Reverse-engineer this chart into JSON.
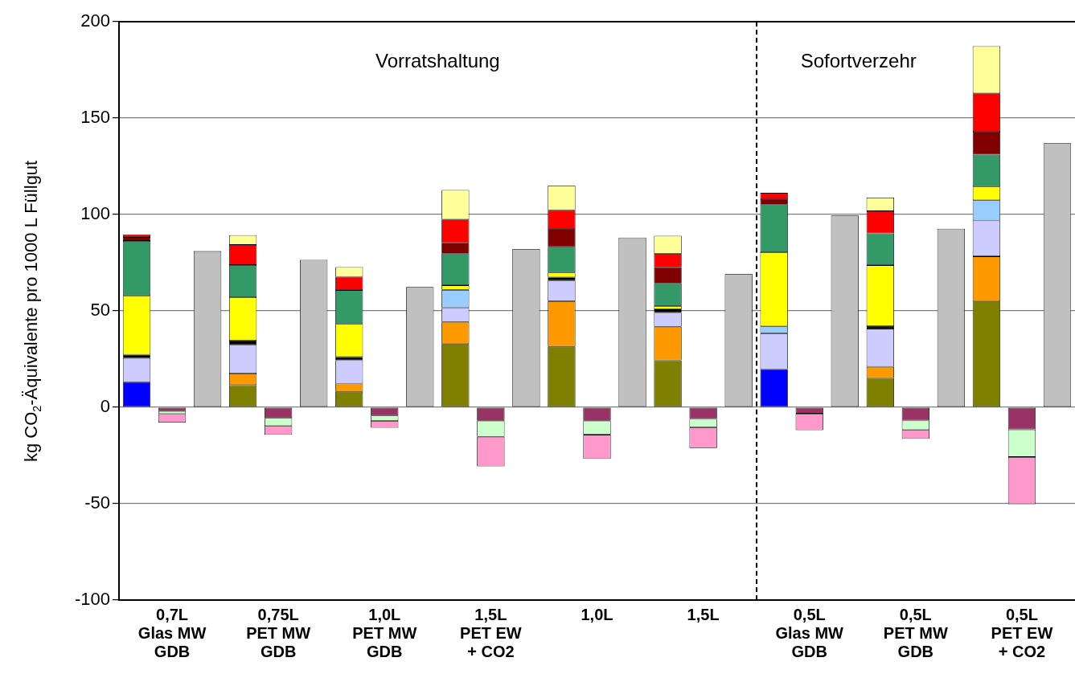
{
  "chart_data": {
    "type": "bar",
    "stacked": true,
    "grid": "y",
    "legend": false,
    "ylabel": "kg CO$_{2}$-Äquivalente pro 1000 L Füllgut",
    "categories": [
      null,
      "0,7L\nGlas MW\nGDB",
      null,
      null,
      "0,75L\nPET MW\nGDB",
      null,
      null,
      "1,0L\nPET MW\nGDB",
      null,
      null,
      "1,5L\nPET EW\n+ CO2",
      null,
      null,
      "1,0L",
      null,
      null,
      "1,5L",
      null,
      null,
      "0,5L\nGlas MW\nGDB",
      null,
      null,
      "0,5L\nPET MW\nGDB",
      null,
      null,
      "0,5L\nPET EW\n+ CO2",
      null
    ],
    "ylim": [
      -100,
      200
    ],
    "yticks": [
      -100,
      -50,
      0,
      50,
      100,
      150,
      200
    ],
    "annotations": [
      "Vorratshaltung",
      "Sofortverzehr"
    ],
    "series": [
      {
        "color": "#0000ff",
        "values": [
          13,
          null,
          null,
          null,
          null,
          null,
          null,
          null,
          null,
          null,
          null,
          null,
          null,
          null,
          null,
          null,
          null,
          null,
          19.8,
          null,
          null,
          null,
          null,
          null,
          null,
          null,
          null
        ]
      },
      {
        "color": "#808000",
        "values": [
          null,
          null,
          null,
          11.5,
          null,
          null,
          8,
          null,
          null,
          32.8,
          null,
          null,
          31.4,
          null,
          null,
          24.4,
          null,
          null,
          null,
          null,
          null,
          15.2,
          null,
          null,
          54.9,
          null,
          null
        ]
      },
      {
        "color": "#ff9900",
        "values": [
          null,
          null,
          null,
          6,
          null,
          null,
          4.3,
          null,
          null,
          11.5,
          null,
          null,
          23.6,
          null,
          null,
          17.4,
          null,
          null,
          null,
          null,
          null,
          5.8,
          null,
          null,
          23.4,
          null,
          null
        ]
      },
      {
        "color": "#ccccff",
        "values": [
          12.5,
          null,
          null,
          14.9,
          null,
          null,
          12.1,
          null,
          null,
          7.2,
          null,
          null,
          10.7,
          null,
          null,
          7.2,
          null,
          null,
          18.6,
          null,
          null,
          19.8,
          null,
          null,
          18.6,
          null,
          null
        ]
      },
      {
        "color": "#99ccff",
        "values": [
          null,
          null,
          null,
          null,
          null,
          null,
          null,
          null,
          null,
          9.4,
          null,
          null,
          null,
          null,
          null,
          null,
          null,
          null,
          3.6,
          null,
          null,
          null,
          null,
          null,
          10.5,
          null,
          null
        ]
      },
      {
        "color": "#000000",
        "values": [
          1.8,
          null,
          null,
          2.2,
          null,
          null,
          1.7,
          null,
          null,
          null,
          null,
          null,
          1.7,
          null,
          null,
          1.8,
          null,
          null,
          null,
          null,
          null,
          1.3,
          null,
          null,
          null,
          null,
          null
        ]
      },
      {
        "color": "#ffff00",
        "values": [
          30.5,
          null,
          null,
          22.5,
          null,
          null,
          17.1,
          null,
          null,
          2.4,
          null,
          null,
          2.5,
          null,
          null,
          1.7,
          null,
          null,
          38.4,
          null,
          null,
          31.6,
          null,
          null,
          7.1,
          null,
          null
        ]
      },
      {
        "color": "#339966",
        "values": [
          28.5,
          null,
          null,
          16.7,
          null,
          null,
          17.6,
          null,
          null,
          16.4,
          null,
          null,
          13.3,
          null,
          null,
          11.8,
          null,
          null,
          24.7,
          null,
          null,
          16.5,
          null,
          null,
          16.5,
          null,
          null
        ]
      },
      {
        "color": "#800000",
        "values": [
          2,
          null,
          null,
          null,
          null,
          null,
          null,
          null,
          null,
          5.6,
          null,
          null,
          9.3,
          null,
          null,
          8.3,
          null,
          null,
          2.8,
          null,
          null,
          null,
          null,
          null,
          11.9,
          null,
          null
        ]
      },
      {
        "color": "#ff0000",
        "values": [
          1.4,
          null,
          null,
          10.4,
          null,
          null,
          6.9,
          null,
          null,
          12.1,
          null,
          null,
          9.7,
          null,
          null,
          7,
          null,
          null,
          3.3,
          null,
          null,
          11.5,
          null,
          null,
          19.9,
          null,
          null
        ]
      },
      {
        "color": "#ffff99",
        "values": [
          null,
          null,
          null,
          5.1,
          null,
          null,
          5,
          null,
          null,
          15.3,
          null,
          null,
          12.8,
          null,
          null,
          9.4,
          null,
          null,
          null,
          null,
          null,
          7.1,
          null,
          null,
          24.5,
          null,
          null
        ]
      },
      {
        "color": "#993366",
        "values": [
          null,
          -2,
          null,
          null,
          -5.5,
          null,
          null,
          -4.3,
          null,
          null,
          -7,
          null,
          null,
          -7,
          null,
          null,
          -6,
          null,
          null,
          -3.3,
          null,
          null,
          -6.9,
          null,
          null,
          -11.5,
          null
        ]
      },
      {
        "color": "#ccffcc",
        "values": [
          null,
          -1.5,
          null,
          null,
          -4.2,
          null,
          null,
          -2.8,
          null,
          null,
          -8.3,
          null,
          null,
          -7.2,
          null,
          null,
          -4.4,
          null,
          null,
          null,
          null,
          null,
          -4.9,
          null,
          null,
          -14.3,
          null
        ]
      },
      {
        "color": "#ff99cc",
        "values": [
          null,
          -4.4,
          null,
          null,
          -4.6,
          null,
          null,
          -3.5,
          null,
          null,
          -15.3,
          null,
          null,
          -12.6,
          null,
          null,
          -10.7,
          null,
          null,
          -8.6,
          null,
          null,
          -4.6,
          null,
          null,
          -24.4,
          null
        ]
      },
      {
        "color": "#c0c0c0",
        "values": [
          null,
          null,
          81,
          null,
          null,
          76.5,
          null,
          null,
          62.4,
          null,
          null,
          82.1,
          null,
          null,
          88,
          null,
          null,
          69.2,
          null,
          null,
          99.5,
          null,
          null,
          92.6,
          null,
          null,
          137
        ]
      }
    ]
  }
}
